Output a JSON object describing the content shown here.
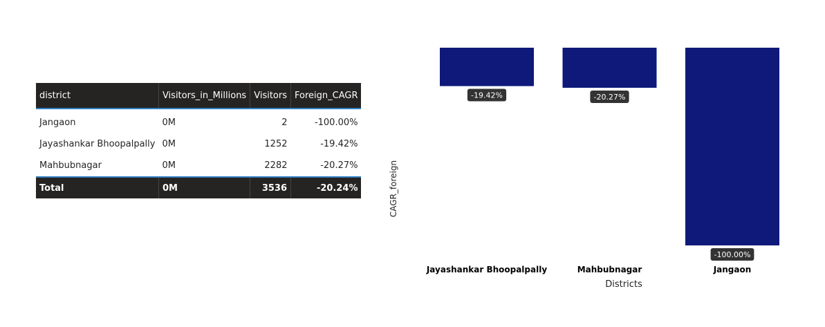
{
  "table": {
    "headers": [
      "district",
      "Visitors_in_Millions",
      "Visitors",
      "Foreign_CAGR"
    ],
    "rows": [
      [
        "Jangaon",
        "0M",
        "2",
        "-100.00%"
      ],
      [
        "Jayashankar Bhoopalpally",
        "0M",
        "1252",
        "-19.42%"
      ],
      [
        "Mahbubnagar",
        "0M",
        "2282",
        "-20.27%"
      ]
    ],
    "total": [
      "Total",
      "0M",
      "3536",
      "-20.24%"
    ]
  },
  "chart_data": {
    "type": "bar",
    "categories": [
      "Jayashankar Bhoopalpally",
      "Mahbubnagar",
      "Jangaon"
    ],
    "values": [
      -19.42,
      -20.27,
      -100.0
    ],
    "data_labels": [
      "-19.42%",
      "-20.27%",
      "-100.00%"
    ],
    "xlabel": "Districts",
    "ylabel": "CAGR_foreign",
    "ylim": [
      -100,
      0
    ],
    "grid": false,
    "bar_color": "#0f197a",
    "label_bg": "#333333"
  }
}
